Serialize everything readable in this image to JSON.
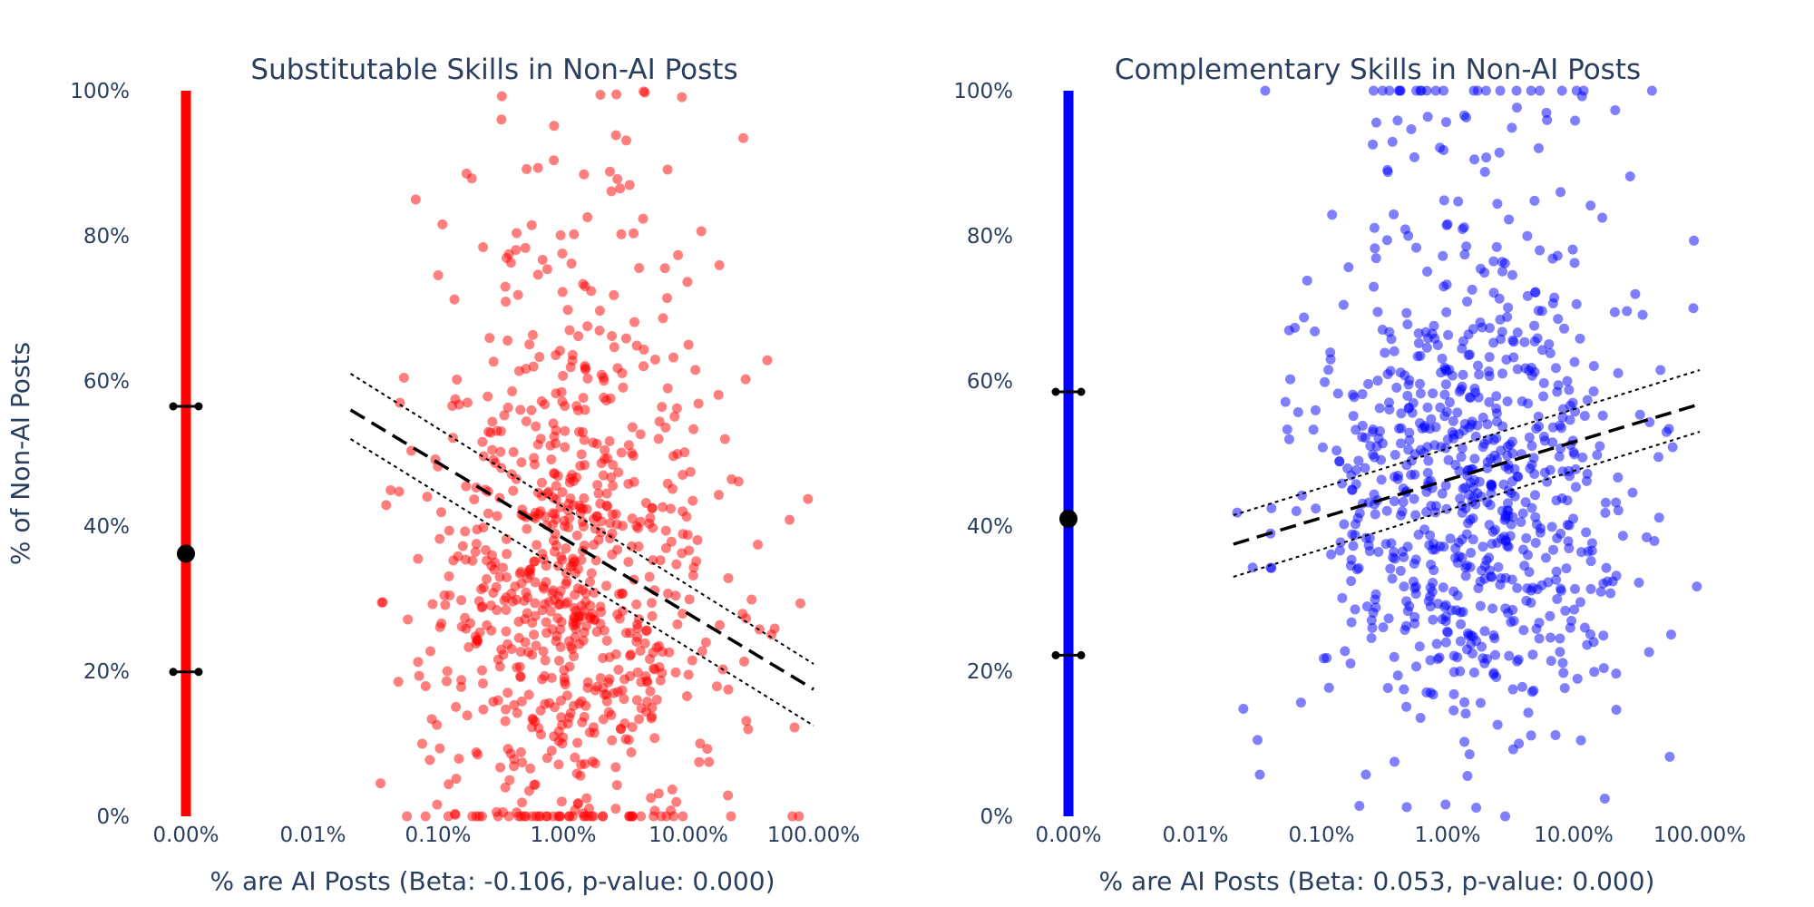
{
  "figure": {
    "ylabel": "% of Non-AI Posts"
  },
  "chart_data": [
    {
      "type": "scatter",
      "title": "Substitutable Skills in Non-AI Posts",
      "xlabel": "% are AI Posts (Beta: -0.106, p-value: 0.000)",
      "ylabel": "% of Non-AI Posts",
      "x_scale": "log",
      "x_ticks": [
        "0.00%",
        "0.01%",
        "0.10%",
        "1.00%",
        "10.00%",
        "100.00%"
      ],
      "y_ticks": [
        "0%",
        "20%",
        "40%",
        "60%",
        "80%",
        "100%"
      ],
      "ylim": [
        0,
        100
      ],
      "color": "#ff0000",
      "zero_strip": {
        "x": "0.00%",
        "y_range": [
          0,
          100
        ],
        "mean": 36.2,
        "lower": 19.9,
        "upper": 56.5
      },
      "scatter": {
        "count": 820,
        "x_range_pct": [
          0.003,
          100
        ],
        "x_center_pct": 1.3,
        "y_center": 30,
        "y_spread": 18,
        "seed": 11
      },
      "fit": {
        "x_pct": [
          0.02,
          100
        ],
        "y": [
          56,
          17.5
        ],
        "ci_lower": [
          52,
          12.5
        ],
        "ci_upper": [
          61,
          21
        ]
      },
      "grid": false
    },
    {
      "type": "scatter",
      "title": "Complementary Skills in Non-AI Posts",
      "xlabel": "% are AI Posts (Beta: 0.053, p-value: 0.000)",
      "ylabel": "% of Non-AI Posts",
      "x_scale": "log",
      "x_ticks": [
        "0.00%",
        "0.01%",
        "0.10%",
        "1.00%",
        "10.00%",
        "100.00%"
      ],
      "y_ticks": [
        "0%",
        "20%",
        "40%",
        "60%",
        "80%",
        "100%"
      ],
      "ylim": [
        0,
        100
      ],
      "color": "#0000ff",
      "zero_strip": {
        "x": "0.00%",
        "y_range": [
          0,
          100
        ],
        "mean": 41,
        "lower": 22.2,
        "upper": 58.5
      },
      "scatter": {
        "count": 820,
        "x_range_pct": [
          0.02,
          100
        ],
        "x_center_pct": 1.5,
        "y_center": 44,
        "y_spread": 17,
        "seed": 23
      },
      "fit": {
        "x_pct": [
          0.02,
          100
        ],
        "y": [
          37.5,
          56.8
        ],
        "ci_lower": [
          33,
          53
        ],
        "ci_upper": [
          41.5,
          61.5
        ]
      },
      "grid": false
    }
  ]
}
